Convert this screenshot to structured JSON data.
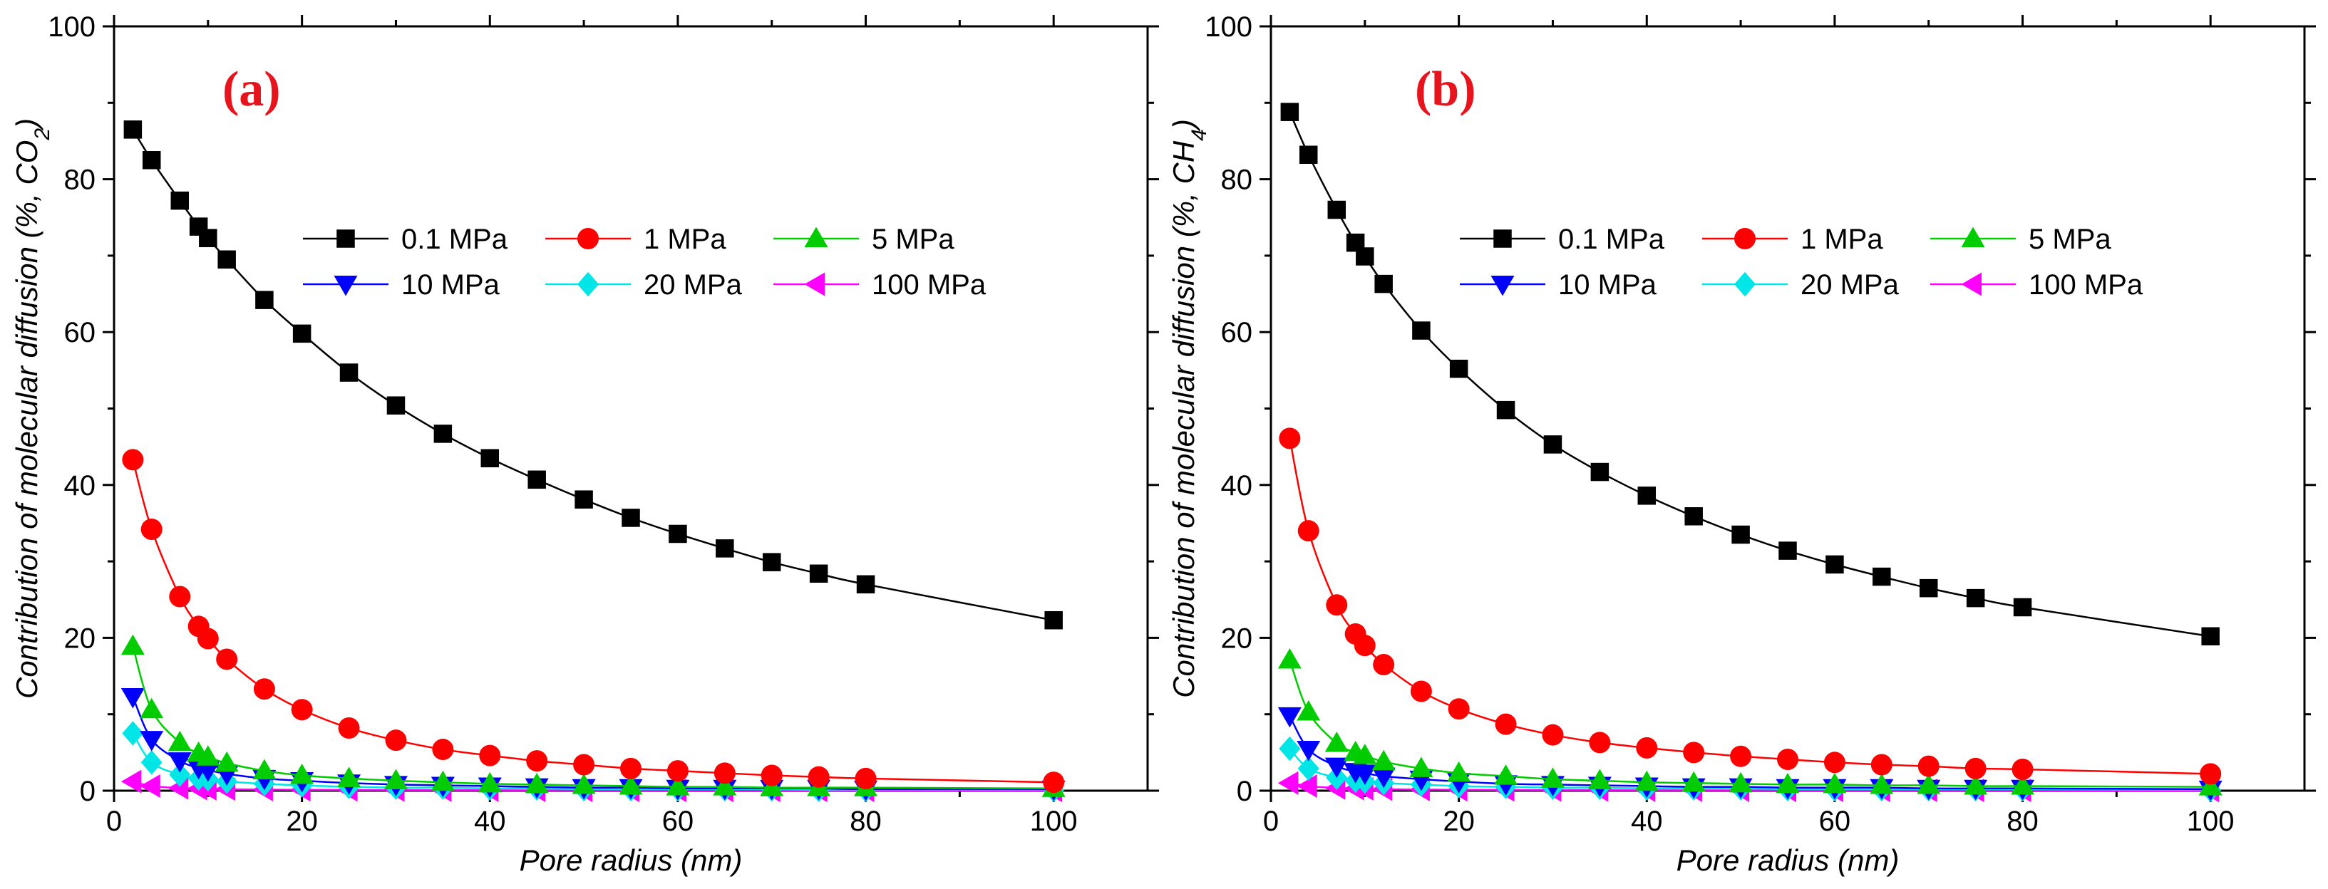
{
  "figure": {
    "panels": [
      "(a)",
      "(b)"
    ]
  },
  "chart_data": [
    {
      "type": "line",
      "panel_label": "(a)",
      "title": "",
      "xlabel": "Pore radius (nm)",
      "ylabel_main": "Contribution of molecular diffusion (%, CO",
      "ylabel_sub": "2",
      "ylabel_end": ")",
      "xlim": [
        0,
        110
      ],
      "ylim": [
        0,
        100
      ],
      "xticks": [
        0,
        20,
        40,
        60,
        80,
        100
      ],
      "yticks": [
        0,
        20,
        40,
        60,
        80,
        100
      ],
      "x": [
        2,
        4,
        7,
        9,
        10,
        12,
        16,
        20,
        25,
        30,
        35,
        40,
        45,
        50,
        55,
        60,
        65,
        70,
        75,
        80,
        100
      ],
      "legend_position": "upper-middle",
      "series": [
        {
          "name": "0.1 MPa",
          "color": "#000000",
          "marker": "square",
          "values": [
            86.5,
            82.5,
            77.2,
            73.8,
            72.3,
            69.5,
            64.2,
            59.8,
            54.7,
            50.4,
            46.7,
            43.5,
            40.7,
            38.1,
            35.7,
            33.6,
            31.7,
            29.9,
            28.4,
            27.0,
            22.3
          ]
        },
        {
          "name": "1 MPa",
          "color": "#ff0000",
          "marker": "circle",
          "values": [
            43.3,
            34.2,
            25.4,
            21.5,
            19.9,
            17.2,
            13.3,
            10.6,
            8.2,
            6.6,
            5.4,
            4.6,
            3.9,
            3.4,
            2.9,
            2.6,
            2.3,
            2.0,
            1.8,
            1.6,
            1.1
          ]
        },
        {
          "name": "5 MPa",
          "color": "#00cc00",
          "marker": "triangle-up",
          "values": [
            18.9,
            10.6,
            6.3,
            4.9,
            4.4,
            3.6,
            2.6,
            2.0,
            1.6,
            1.3,
            1.1,
            0.9,
            0.8,
            0.7,
            0.6,
            0.5,
            0.5,
            0.4,
            0.4,
            0.4,
            0.3
          ]
        },
        {
          "name": "10 MPa",
          "color": "#0000ff",
          "marker": "triangle-down",
          "values": [
            12.3,
            6.7,
            3.9,
            3.0,
            2.7,
            2.2,
            1.6,
            1.3,
            1.0,
            0.8,
            0.7,
            0.6,
            0.5,
            0.4,
            0.4,
            0.3,
            0.3,
            0.3,
            0.3,
            0.2,
            0.2
          ]
        },
        {
          "name": "20 MPa",
          "color": "#00e5e5",
          "marker": "diamond",
          "values": [
            7.5,
            3.7,
            2.1,
            1.6,
            1.5,
            1.2,
            0.9,
            0.7,
            0.5,
            0.4,
            0.4,
            0.3,
            0.3,
            0.2,
            0.2,
            0.2,
            0.2,
            0.2,
            0.1,
            0.1,
            0.1
          ]
        },
        {
          "name": "100 MPa",
          "color": "#ff00ff",
          "marker": "triangle-left",
          "values": [
            1.2,
            0.6,
            0.35,
            0.27,
            0.24,
            0.2,
            0.15,
            0.12,
            0.1,
            0.08,
            0.07,
            0.06,
            0.05,
            0.05,
            0.04,
            0.04,
            0.04,
            0.03,
            0.03,
            0.03,
            0.02
          ]
        }
      ]
    },
    {
      "type": "line",
      "panel_label": "(b)",
      "title": "",
      "xlabel": "Pore radius (nm)",
      "ylabel_main": "Contribution of molecular diffusion (%, CH",
      "ylabel_sub": "4",
      "ylabel_end": ")",
      "xlim": [
        0,
        110
      ],
      "ylim": [
        0,
        100
      ],
      "xticks": [
        0,
        20,
        40,
        60,
        80,
        100
      ],
      "yticks": [
        0,
        20,
        40,
        60,
        80,
        100
      ],
      "x": [
        2,
        4,
        7,
        9,
        10,
        12,
        16,
        20,
        25,
        30,
        35,
        40,
        45,
        50,
        55,
        60,
        65,
        70,
        75,
        80,
        100
      ],
      "legend_position": "upper-middle",
      "series": [
        {
          "name": "0.1 MPa",
          "color": "#000000",
          "marker": "square",
          "values": [
            88.8,
            83.2,
            76.0,
            71.7,
            69.9,
            66.3,
            60.2,
            55.2,
            49.8,
            45.3,
            41.7,
            38.6,
            35.9,
            33.5,
            31.4,
            29.6,
            28.0,
            26.5,
            25.2,
            24.0,
            20.2
          ]
        },
        {
          "name": "1 MPa",
          "color": "#ff0000",
          "marker": "circle",
          "values": [
            46.1,
            34.0,
            24.3,
            20.5,
            19.0,
            16.5,
            13.0,
            10.7,
            8.7,
            7.3,
            6.3,
            5.6,
            5.0,
            4.5,
            4.1,
            3.7,
            3.4,
            3.2,
            2.9,
            2.8,
            2.2
          ]
        },
        {
          "name": "5 MPa",
          "color": "#00cc00",
          "marker": "triangle-up",
          "values": [
            17.1,
            10.3,
            6.2,
            5.0,
            4.6,
            3.8,
            2.9,
            2.3,
            1.9,
            1.5,
            1.3,
            1.1,
            1.0,
            0.9,
            0.8,
            0.8,
            0.7,
            0.7,
            0.6,
            0.6,
            0.5
          ]
        },
        {
          "name": "10 MPa",
          "color": "#0000ff",
          "marker": "triangle-down",
          "values": [
            9.8,
            5.4,
            3.2,
            2.5,
            2.3,
            1.9,
            1.5,
            1.2,
            0.9,
            0.8,
            0.7,
            0.6,
            0.5,
            0.5,
            0.4,
            0.4,
            0.4,
            0.3,
            0.3,
            0.3,
            0.2
          ]
        },
        {
          "name": "20 MPa",
          "color": "#00e5e5",
          "marker": "diamond",
          "values": [
            5.5,
            2.9,
            1.7,
            1.3,
            1.2,
            1.0,
            0.8,
            0.6,
            0.5,
            0.4,
            0.4,
            0.3,
            0.3,
            0.3,
            0.2,
            0.2,
            0.2,
            0.2,
            0.2,
            0.2,
            0.1
          ]
        },
        {
          "name": "100 MPa",
          "color": "#ff00ff",
          "marker": "triangle-left",
          "values": [
            1.0,
            0.6,
            0.35,
            0.27,
            0.24,
            0.2,
            0.15,
            0.12,
            0.1,
            0.08,
            0.07,
            0.06,
            0.05,
            0.05,
            0.04,
            0.04,
            0.04,
            0.03,
            0.03,
            0.03,
            0.02
          ]
        }
      ]
    }
  ]
}
